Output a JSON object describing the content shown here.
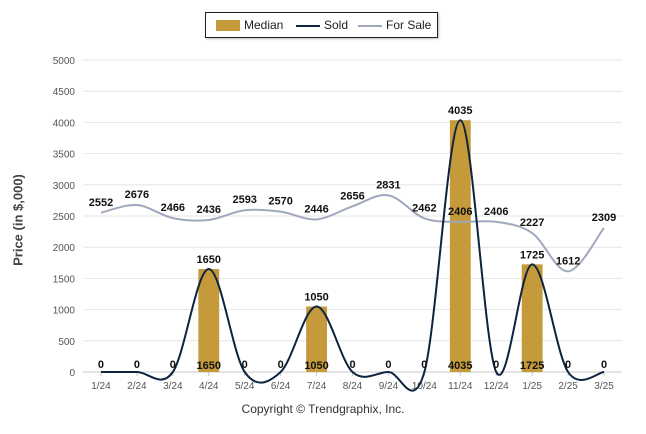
{
  "chart_data": {
    "type": "bar",
    "categories": [
      "1/24",
      "2/24",
      "3/24",
      "4/24",
      "5/24",
      "6/24",
      "7/24",
      "8/24",
      "9/24",
      "10/24",
      "11/24",
      "12/24",
      "1/25",
      "2/25",
      "3/25"
    ],
    "series": [
      {
        "name": "Median",
        "kind": "bar",
        "values": [
          0,
          0,
          0,
          1650,
          0,
          0,
          1050,
          0,
          0,
          0,
          4035,
          0,
          1725,
          0,
          0
        ],
        "color": "#c49a3a"
      },
      {
        "name": "Sold",
        "kind": "line",
        "values": [
          0,
          0,
          0,
          1650,
          0,
          0,
          1050,
          0,
          0,
          0,
          4035,
          0,
          1725,
          0,
          0
        ],
        "color": "#0d2340"
      },
      {
        "name": "For Sale",
        "kind": "line",
        "values": [
          2552,
          2676,
          2466,
          2436,
          2593,
          2570,
          2446,
          2656,
          2831,
          2462,
          2406,
          2406,
          2227,
          1612,
          2309
        ],
        "color": "#a0a8bd"
      }
    ],
    "ylabel": "Price (in $,000)",
    "xlabel": "",
    "ylim": [
      0,
      5000
    ],
    "yticks": [
      0,
      500,
      1000,
      1500,
      2000,
      2500,
      3000,
      3500,
      4000,
      4500,
      5000
    ],
    "grid": true,
    "legend_position": "top-center"
  },
  "legend": {
    "median": "Median",
    "sold": "Sold",
    "for_sale": "For Sale"
  },
  "copyright": "Copyright © Trendgraphix, Inc."
}
